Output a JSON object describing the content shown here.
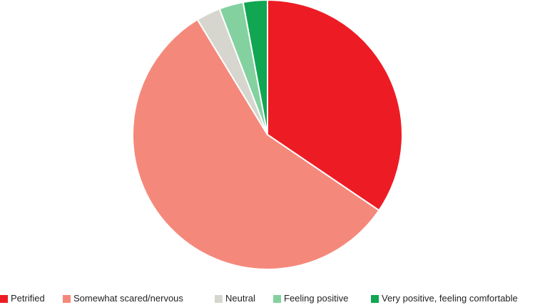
{
  "chart_data": {
    "type": "pie",
    "title": "",
    "start": "top",
    "direction": "clockwise",
    "slices": [
      {
        "label": "Petrified",
        "value": 34.5,
        "color": "#ed1c24"
      },
      {
        "label": "Somewhat scared/nervous",
        "value": 56.8,
        "color": "#f4897b"
      },
      {
        "label": "Neutral",
        "value": 2.9,
        "color": "#d6d6cf"
      },
      {
        "label": "Feeling positive",
        "value": 2.9,
        "color": "#84d1a0"
      },
      {
        "label": "Very positive, feeling comfortable",
        "value": 2.9,
        "color": "#10a652"
      }
    ],
    "legend_position": "bottom"
  }
}
